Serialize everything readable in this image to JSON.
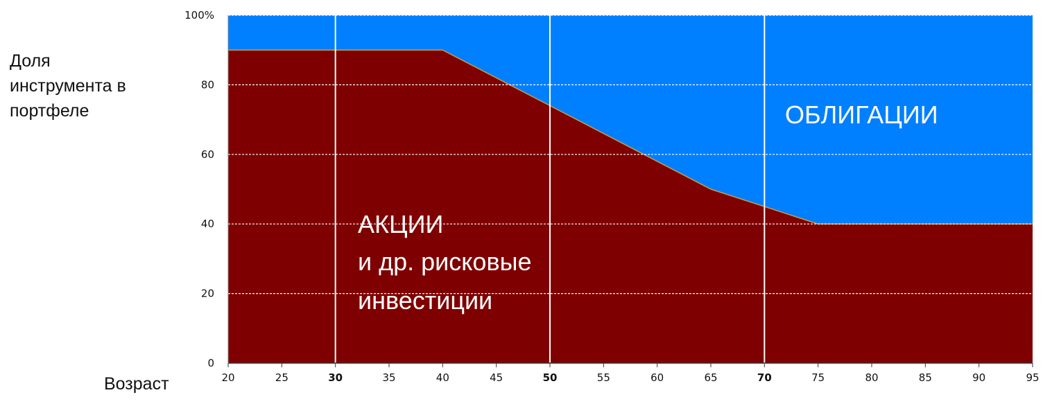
{
  "chart_data": {
    "type": "area",
    "xlabel": "Возраст",
    "ylabel": "Доля\nинструмента в\nпортфеле",
    "xlim": [
      20,
      95
    ],
    "ylim": [
      0,
      100
    ],
    "x_ticks": [
      "20",
      "25",
      "30",
      "35",
      "40",
      "45",
      "50",
      "55",
      "60",
      "65",
      "70",
      "75",
      "80",
      "85",
      "90",
      "95"
    ],
    "x_ticks_bold": [
      "30",
      "50",
      "70"
    ],
    "y_ticks": [
      "0",
      "20",
      "40",
      "60",
      "80",
      "100%"
    ],
    "x_gridlines": [
      30,
      50,
      70
    ],
    "y_gridlines": [
      20,
      40,
      60,
      80
    ],
    "x": [
      20,
      40,
      50,
      65,
      75,
      95
    ],
    "series": [
      {
        "values": [
          90,
          90,
          74,
          50,
          40,
          40
        ],
        "color": "#7f0000"
      },
      {
        "values": [
          10,
          10,
          26,
          50,
          60,
          60
        ],
        "color": "#0080ff"
      }
    ],
    "annotations": {
      "stocks_line1": "АКЦИИ",
      "stocks_line2": "и др. рисковые",
      "stocks_line3": "инвестиции",
      "bonds": "ОБЛИГАЦИИ"
    }
  }
}
